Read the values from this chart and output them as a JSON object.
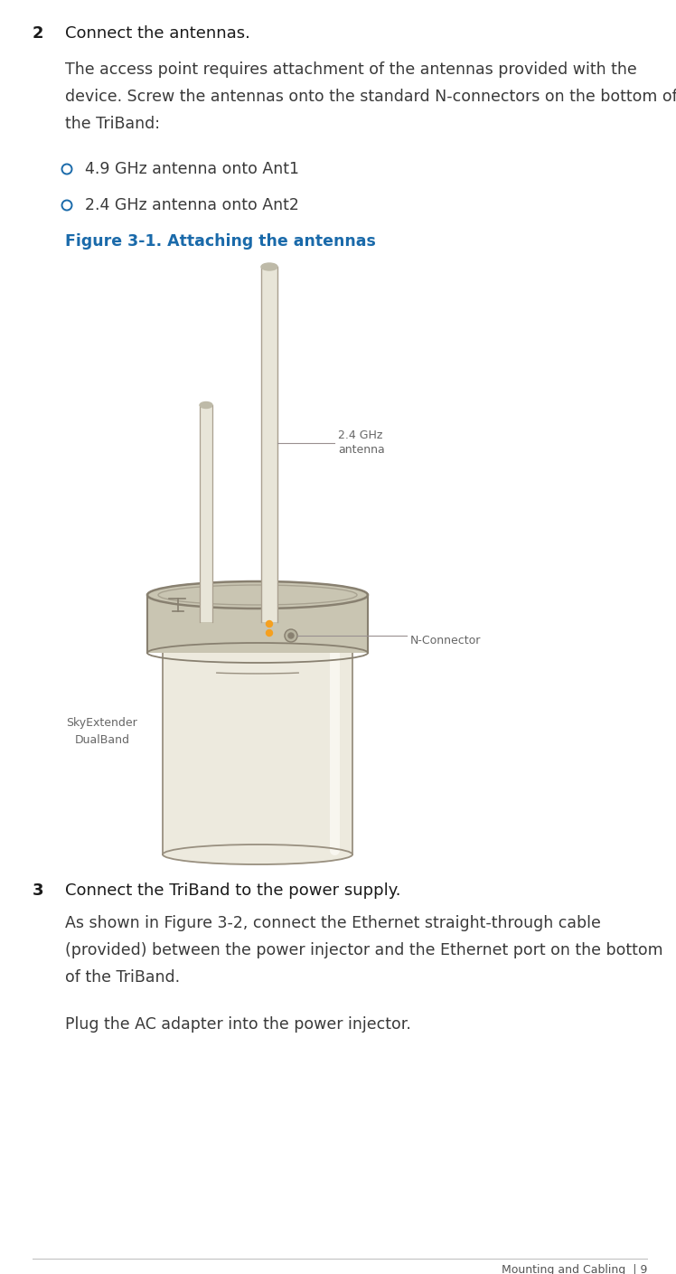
{
  "bg_color": "#ffffff",
  "step2_number": "2",
  "step2_heading": "Connect the antennas.",
  "step2_body_line1": "The access point requires attachment of the antennas provided with the",
  "step2_body_line2": "device. Screw the antennas onto the standard N-connectors on the bottom of",
  "step2_body_line3": "the TriBand:",
  "bullet1": "4.9 GHz antenna onto Ant1",
  "bullet2": "2.4 GHz antenna onto Ant2",
  "figure_caption": "Figure 3-1. Attaching the antennas",
  "label_24ghz_line1": "2.4 GHz",
  "label_24ghz_line2": "antenna",
  "label_nconn": "N-Connector",
  "label_sky1": "SkyExtender",
  "label_sky2": "DualBand",
  "step3_number": "3",
  "step3_heading": "Connect the TriBand to the power supply.",
  "step3_body1_line1": "As shown in Figure 3-2, connect the Ethernet straight-through cable",
  "step3_body1_line2": "(provided) between the power injector and the Ethernet port on the bottom",
  "step3_body1_line3": "of the TriBand.",
  "step3_body2": "Plug the AC adapter into the power injector.",
  "footer": "Mounting and Cabling  | 9",
  "heading_color": "#1a1a1a",
  "body_color": "#3a3a3a",
  "bullet_dot_color": "#1a6aaa",
  "figure_caption_color": "#1a6aaa",
  "label_color": "#666666",
  "footer_color": "#555555",
  "plate_fill": "#c9c5b2",
  "plate_edge": "#888070",
  "body_fill": "#edeade",
  "body_edge": "#999080",
  "ant_fill": "#e8e5d8",
  "ant_edge": "#aaa090",
  "ant_cap": "#bebaa8",
  "orange_dot": "#f5a020",
  "nconn_fill": "#b8b4a0",
  "nconn_edge": "#888070",
  "line_color": "#999090"
}
